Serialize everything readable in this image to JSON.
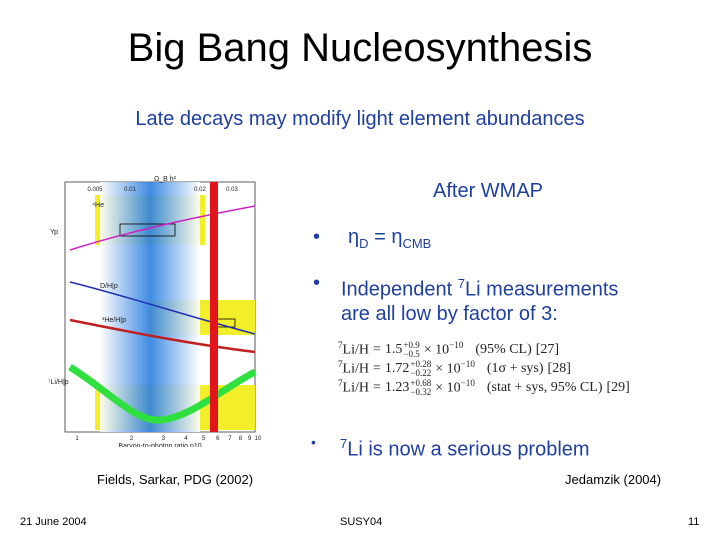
{
  "title": "Big Bang Nucleosynthesis",
  "subtitle": "Late decays may modify light element abundances",
  "heading": "After WMAP",
  "bullet1": {
    "lhs": "η",
    "lhs_sub": "D",
    "eq": "=",
    "rhs": "η",
    "rhs_sub": "CMB"
  },
  "bullet2": {
    "pre": "Independent",
    "sup": "7",
    "post": "Li measurements",
    "line2": "are all low by factor of 3:"
  },
  "equations": [
    {
      "sup": "7",
      "lhs": "Li/H",
      "eq": "=",
      "mantissa": "1.5",
      "up": "+0.9",
      "down": "−0.5",
      "base": "× 10",
      "exp": "−10",
      "note": "(95% CL)",
      "ref": "[27]"
    },
    {
      "sup": "7",
      "lhs": "Li/H",
      "eq": "=",
      "mantissa": "1.72",
      "up": "+0.28",
      "down": "−0.22",
      "base": "× 10",
      "exp": "−10",
      "note": "(1σ + sys)",
      "ref": "[28]"
    },
    {
      "sup": "7",
      "lhs": "Li/H",
      "eq": "=",
      "mantissa": "1.23",
      "up": "+0.68",
      "down": "−0.32",
      "base": "× 10",
      "exp": "−10",
      "note": "(stat + sys, 95% CL)",
      "ref": "[29]"
    }
  ],
  "bullet3": {
    "sup": "7",
    "post": "Li is now a serious problem"
  },
  "caption_left": "Fields, Sarkar, PDG (2002)",
  "caption_right": "Jedamzik (2004)",
  "plot": {
    "top_axis_label": "Ω_B h²",
    "top_ticks": [
      "0.005",
      "0.01",
      "0.02",
      "0.03"
    ],
    "bottom_ticks": [
      "1",
      "2",
      "3",
      "4",
      "5",
      "6",
      "7",
      "8",
      "9",
      "10"
    ],
    "x_label": "Baryon-to-photon ratio η10",
    "curve_labels": [
      "⁴He",
      "Yp",
      "D/H|p",
      "³He/H|p",
      "⁷Li/H|p"
    ]
  },
  "footer": {
    "date": "21 June 2004",
    "event": "SUSY04",
    "page": "11"
  }
}
